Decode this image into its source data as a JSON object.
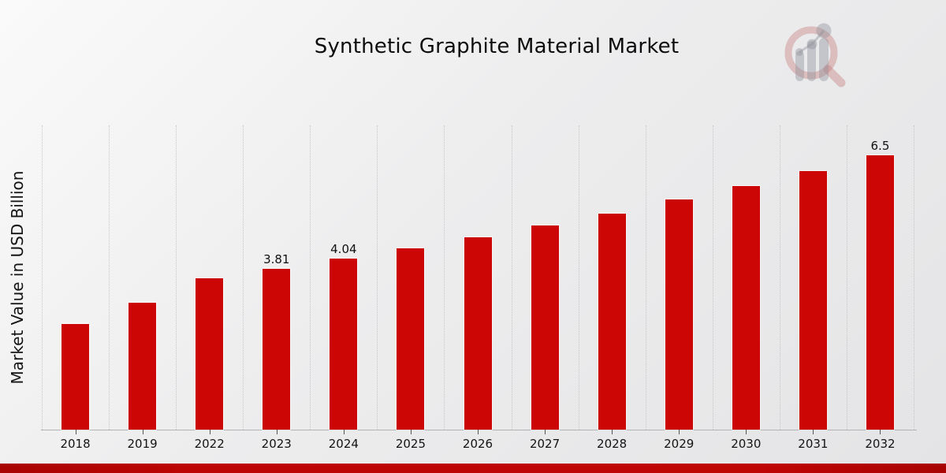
{
  "header": {
    "title": "Synthetic Graphite Material Market"
  },
  "icons": {
    "logo": "magnifier-bar-chart-watermark-logo"
  },
  "chart_data": {
    "type": "bar",
    "title": "Synthetic Graphite Material Market",
    "categories": [
      "2018",
      "2019",
      "2022",
      "2023",
      "2024",
      "2025",
      "2026",
      "2027",
      "2028",
      "2029",
      "2030",
      "2031",
      "2032"
    ],
    "values": [
      2.5,
      3.0,
      3.59,
      3.81,
      4.04,
      4.29,
      4.55,
      4.83,
      5.12,
      5.44,
      5.77,
      6.12,
      6.5
    ],
    "data_labels": [
      "",
      "",
      "",
      "3.81",
      "4.04",
      "",
      "",
      "",
      "",
      "",
      "",
      "",
      "6.5"
    ],
    "xlabel": "",
    "ylabel": "Market Value in USD Billion",
    "ylim": [
      0,
      7.2
    ],
    "grid": "vertical-dotted-only",
    "legend": "none",
    "bar_color": "#cc0505",
    "background_color": "#ececee",
    "footer_accent_color": "#bd0505"
  }
}
